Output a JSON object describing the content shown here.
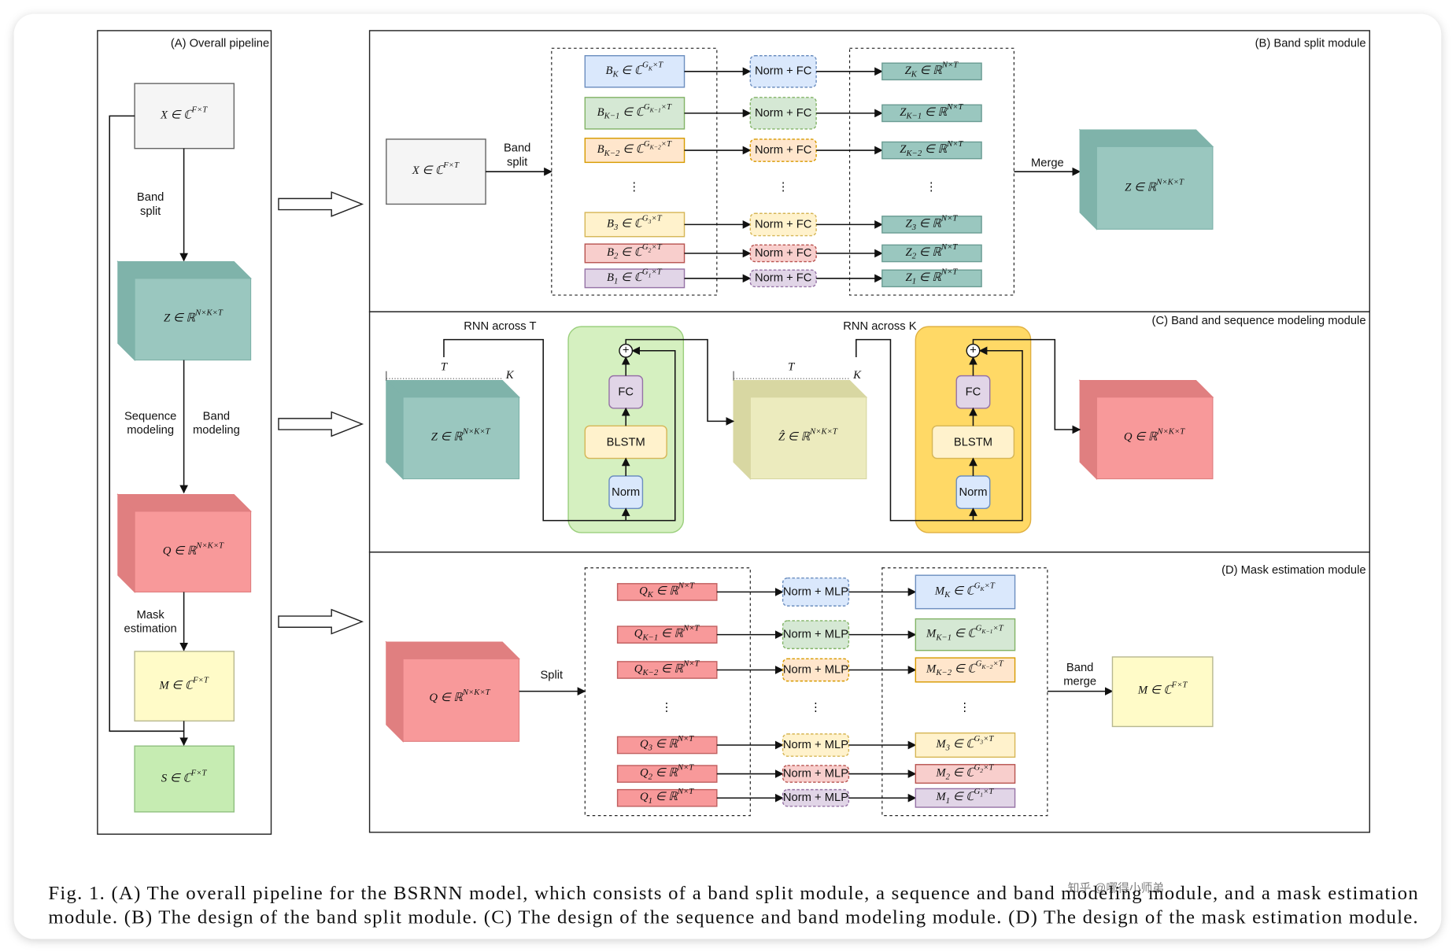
{
  "panel_a": {
    "title": "(A) Overall pipeline",
    "nodes": [
      {
        "label": [
          {
            "text": "X ∈ ℂ"
          },
          {
            "text": "F×T",
            "pos": "sup"
          }
        ]
      },
      {
        "label": [
          {
            "text": "Z ∈ ℝ"
          },
          {
            "text": "N×K×T",
            "pos": "sup"
          }
        ]
      },
      {
        "label": [
          {
            "text": "Q ∈ ℝ"
          },
          {
            "text": "N×K×T",
            "pos": "sup"
          }
        ]
      },
      {
        "label": [
          {
            "text": "M ∈ ℂ"
          },
          {
            "text": "F×T",
            "pos": "sup"
          }
        ]
      },
      {
        "label": [
          {
            "text": "S ∈ ℂ"
          },
          {
            "text": "F×T",
            "pos": "sup"
          }
        ]
      }
    ],
    "edge_labels": [
      [
        "Band",
        "split"
      ],
      [
        "Sequence",
        "modeling"
      ],
      [
        "Band",
        "modeling"
      ],
      [
        "Mask",
        "estimation"
      ]
    ]
  },
  "panel_b": {
    "title": "(B) Band split module",
    "input": [
      {
        "text": "X ∈ ℂ"
      },
      {
        "text": "F×T",
        "pos": "sup"
      }
    ],
    "split_label": [
      "Band",
      "split"
    ],
    "ellipsis": "⋮",
    "rows": [
      {
        "fill": "#dae8fc",
        "stroke": "#6c8ebf",
        "band": [
          {
            "text": "B"
          },
          {
            "text": "K",
            "pos": "sub"
          },
          {
            "text": " ∈ ℂ"
          },
          {
            "text": "G",
            "pos": "sup"
          },
          {
            "text": "K",
            "pos": "supsub"
          },
          {
            "text": "×T",
            "pos": "sup"
          }
        ],
        "op": "Norm + FC",
        "out": [
          {
            "text": "Z"
          },
          {
            "text": "K",
            "pos": "sub"
          },
          {
            "text": " ∈ ℝ"
          },
          {
            "text": "N×T",
            "pos": "sup"
          }
        ]
      },
      {
        "fill": "#d5e8d4",
        "stroke": "#82b366",
        "band": [
          {
            "text": "B"
          },
          {
            "text": "K−1",
            "pos": "sub"
          },
          {
            "text": " ∈ ℂ"
          },
          {
            "text": "G",
            "pos": "sup"
          },
          {
            "text": "K−1",
            "pos": "supsub"
          },
          {
            "text": "×T",
            "pos": "sup"
          }
        ],
        "op": "Norm + FC",
        "out": [
          {
            "text": "Z"
          },
          {
            "text": "K−1",
            "pos": "sub"
          },
          {
            "text": " ∈ ℝ"
          },
          {
            "text": "N×T",
            "pos": "sup"
          }
        ]
      },
      {
        "fill": "#ffe6cc",
        "stroke": "#d79b00",
        "band": [
          {
            "text": "B"
          },
          {
            "text": "K−2",
            "pos": "sub"
          },
          {
            "text": " ∈ ℂ"
          },
          {
            "text": "G",
            "pos": "sup"
          },
          {
            "text": "K−2",
            "pos": "supsub"
          },
          {
            "text": "×T",
            "pos": "sup"
          }
        ],
        "op": "Norm + FC",
        "out": [
          {
            "text": "Z"
          },
          {
            "text": "K−2",
            "pos": "sub"
          },
          {
            "text": " ∈ ℝ"
          },
          {
            "text": "N×T",
            "pos": "sup"
          }
        ]
      },
      {
        "fill": "#fff2cc",
        "stroke": "#d6b656",
        "band": [
          {
            "text": "B"
          },
          {
            "text": "3",
            "pos": "sub"
          },
          {
            "text": " ∈ ℂ"
          },
          {
            "text": "G",
            "pos": "sup"
          },
          {
            "text": "3",
            "pos": "supsub"
          },
          {
            "text": "×T",
            "pos": "sup"
          }
        ],
        "op": "Norm + FC",
        "out": [
          {
            "text": "Z"
          },
          {
            "text": "3",
            "pos": "sub"
          },
          {
            "text": " ∈ ℝ"
          },
          {
            "text": "N×T",
            "pos": "sup"
          }
        ]
      },
      {
        "fill": "#f8cecc",
        "stroke": "#b85450",
        "band": [
          {
            "text": "B"
          },
          {
            "text": "2",
            "pos": "sub"
          },
          {
            "text": " ∈ ℂ"
          },
          {
            "text": "G",
            "pos": "sup"
          },
          {
            "text": "2",
            "pos": "supsub"
          },
          {
            "text": "×T",
            "pos": "sup"
          }
        ],
        "op": "Norm + FC",
        "out": [
          {
            "text": "Z"
          },
          {
            "text": "2",
            "pos": "sub"
          },
          {
            "text": " ∈ ℝ"
          },
          {
            "text": "N×T",
            "pos": "sup"
          }
        ]
      },
      {
        "fill": "#e1d5e7",
        "stroke": "#9673a6",
        "band": [
          {
            "text": "B"
          },
          {
            "text": "1",
            "pos": "sub"
          },
          {
            "text": " ∈ ℂ"
          },
          {
            "text": "G",
            "pos": "sup"
          },
          {
            "text": "1",
            "pos": "supsub"
          },
          {
            "text": "×T",
            "pos": "sup"
          }
        ],
        "op": "Norm + FC",
        "out": [
          {
            "text": "Z"
          },
          {
            "text": "1",
            "pos": "sub"
          },
          {
            "text": " ∈ ℝ"
          },
          {
            "text": "N×T",
            "pos": "sup"
          }
        ]
      }
    ],
    "merge_label": "Merge",
    "output": [
      {
        "text": "Z ∈ ℝ"
      },
      {
        "text": "N×K×T",
        "pos": "sup"
      }
    ]
  },
  "panel_c": {
    "title": "(C) Band and sequence modeling module",
    "input": [
      {
        "text": "Z ∈ ℝ"
      },
      {
        "text": "N×K×T",
        "pos": "sup"
      }
    ],
    "middle": [
      {
        "text": "Ẑ ∈ ℝ"
      },
      {
        "text": "N×K×T",
        "pos": "sup"
      }
    ],
    "output": [
      {
        "text": "Q ∈ ℝ"
      },
      {
        "text": "N×K×T",
        "pos": "sup"
      }
    ],
    "dims": [
      [
        "T",
        "K"
      ],
      [
        "T",
        "K"
      ]
    ],
    "blocks": [
      {
        "label": "RNN across T",
        "fc": "FC",
        "blstm": "BLSTM",
        "norm": "Norm",
        "add": "+",
        "fill": "#d5f0c0",
        "stroke": "#9bcf7d"
      },
      {
        "label": "RNN across K",
        "fc": "FC",
        "blstm": "BLSTM",
        "norm": "Norm",
        "add": "+",
        "fill": "#ffd966",
        "stroke": "#e0b040"
      }
    ]
  },
  "panel_d": {
    "title": "(D) Mask estimation module",
    "input": [
      {
        "text": "Q ∈ ℝ"
      },
      {
        "text": "N×K×T",
        "pos": "sup"
      }
    ],
    "split_label": "Split",
    "ellipsis": "⋮",
    "rows": [
      {
        "fill": "#dae8fc",
        "stroke": "#6c8ebf",
        "band": [
          {
            "text": "Q"
          },
          {
            "text": "K",
            "pos": "sub"
          },
          {
            "text": " ∈ ℝ"
          },
          {
            "text": "N×T",
            "pos": "sup"
          }
        ],
        "op": "Norm + MLP",
        "out": [
          {
            "text": "M"
          },
          {
            "text": "K",
            "pos": "sub"
          },
          {
            "text": " ∈ ℂ"
          },
          {
            "text": "G",
            "pos": "sup"
          },
          {
            "text": "K",
            "pos": "supsub"
          },
          {
            "text": "×T",
            "pos": "sup"
          }
        ]
      },
      {
        "fill": "#d5e8d4",
        "stroke": "#82b366",
        "band": [
          {
            "text": "Q"
          },
          {
            "text": "K−1",
            "pos": "sub"
          },
          {
            "text": " ∈ ℝ"
          },
          {
            "text": "N×T",
            "pos": "sup"
          }
        ],
        "op": "Norm + MLP",
        "out": [
          {
            "text": "M"
          },
          {
            "text": "K−1",
            "pos": "sub"
          },
          {
            "text": " ∈ ℂ"
          },
          {
            "text": "G",
            "pos": "sup"
          },
          {
            "text": "K−1",
            "pos": "supsub"
          },
          {
            "text": "×T",
            "pos": "sup"
          }
        ]
      },
      {
        "fill": "#ffe6cc",
        "stroke": "#d79b00",
        "band": [
          {
            "text": "Q"
          },
          {
            "text": "K−2",
            "pos": "sub"
          },
          {
            "text": " ∈ ℝ"
          },
          {
            "text": "N×T",
            "pos": "sup"
          }
        ],
        "op": "Norm + MLP",
        "out": [
          {
            "text": "M"
          },
          {
            "text": "K−2",
            "pos": "sub"
          },
          {
            "text": " ∈ ℂ"
          },
          {
            "text": "G",
            "pos": "sup"
          },
          {
            "text": "K−2",
            "pos": "supsub"
          },
          {
            "text": "×T",
            "pos": "sup"
          }
        ]
      },
      {
        "fill": "#fff2cc",
        "stroke": "#d6b656",
        "band": [
          {
            "text": "Q"
          },
          {
            "text": "3",
            "pos": "sub"
          },
          {
            "text": " ∈ ℝ"
          },
          {
            "text": "N×T",
            "pos": "sup"
          }
        ],
        "op": "Norm + MLP",
        "out": [
          {
            "text": "M"
          },
          {
            "text": "3",
            "pos": "sub"
          },
          {
            "text": " ∈ ℂ"
          },
          {
            "text": "G",
            "pos": "sup"
          },
          {
            "text": "3",
            "pos": "supsub"
          },
          {
            "text": "×T",
            "pos": "sup"
          }
        ]
      },
      {
        "fill": "#f8cecc",
        "stroke": "#b85450",
        "band": [
          {
            "text": "Q"
          },
          {
            "text": "2",
            "pos": "sub"
          },
          {
            "text": " ∈ ℝ"
          },
          {
            "text": "N×T",
            "pos": "sup"
          }
        ],
        "op": "Norm + MLP",
        "out": [
          {
            "text": "M"
          },
          {
            "text": "2",
            "pos": "sub"
          },
          {
            "text": " ∈ ℂ"
          },
          {
            "text": "G",
            "pos": "sup"
          },
          {
            "text": "2",
            "pos": "supsub"
          },
          {
            "text": "×T",
            "pos": "sup"
          }
        ]
      },
      {
        "fill": "#e1d5e7",
        "stroke": "#9673a6",
        "band": [
          {
            "text": "Q"
          },
          {
            "text": "1",
            "pos": "sub"
          },
          {
            "text": " ∈ ℝ"
          },
          {
            "text": "N×T",
            "pos": "sup"
          }
        ],
        "op": "Norm + MLP",
        "out": [
          {
            "text": "M"
          },
          {
            "text": "1",
            "pos": "sub"
          },
          {
            "text": " ∈ ℂ"
          },
          {
            "text": "G",
            "pos": "sup"
          },
          {
            "text": "1",
            "pos": "supsub"
          },
          {
            "text": "×T",
            "pos": "sup"
          }
        ]
      }
    ],
    "merge_label": [
      "Band",
      "merge"
    ],
    "output": [
      {
        "text": "M ∈ ℂ"
      },
      {
        "text": "F×T",
        "pos": "sup"
      }
    ]
  },
  "caption": {
    "lines": [
      "Fig. 1.   (A) The overall pipeline for the BSRNN model, which consists of a band split module, a sequence and band modeling module, and a mask estimation",
      "module. (B) The design of the band split module. (C) The design of the sequence and band modeling module. (D) The design of the mask estimation module."
    ]
  },
  "watermark": "知乎 @哪得小师弟"
}
